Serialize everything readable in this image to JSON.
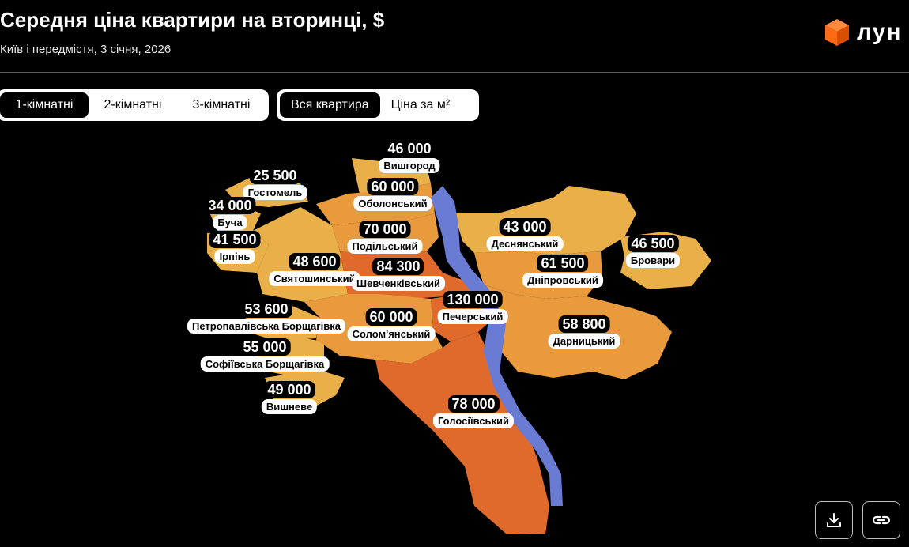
{
  "header": {
    "title": "Середня ціна квартири на вторинці, $",
    "subtitle": "Київ і передмістя, 3 січня, 2026"
  },
  "logo": {
    "text": "лун",
    "icon": "orange-cube-icon",
    "color": "#ff6a13"
  },
  "tabs_rooms": {
    "items": [
      {
        "label": "1-кімнатні",
        "active": true
      },
      {
        "label": "2-кімнатні",
        "active": false
      },
      {
        "label": "3-кімнатні",
        "active": false
      }
    ]
  },
  "tabs_metric": {
    "items": [
      {
        "label": "Вся квартира",
        "active": true
      },
      {
        "label": "Ціна за м²",
        "active": false
      }
    ]
  },
  "colors": {
    "river": "#6a7bd3",
    "shade_light": "#e9b04a",
    "shade_mid": "#e99a3c",
    "shade_dark": "#e06a2b"
  },
  "regions": [
    {
      "name": "Вишгород",
      "price": "46 000"
    },
    {
      "name": "Гостомель",
      "price": "25 500"
    },
    {
      "name": "Оболонський",
      "price": "60 000"
    },
    {
      "name": "Буча",
      "price": "34 000"
    },
    {
      "name": "Подільський",
      "price": "70 000"
    },
    {
      "name": "Ірпінь",
      "price": "41 500"
    },
    {
      "name": "Деснянський",
      "price": "43 000"
    },
    {
      "name": "Бровари",
      "price": "46 500"
    },
    {
      "name": "Святошинський",
      "price": "48 600"
    },
    {
      "name": "Шевченківський",
      "price": "84 300"
    },
    {
      "name": "Дніпровський",
      "price": "61 500"
    },
    {
      "name": "Печерський",
      "price": "130 000"
    },
    {
      "name": "Петропавлівська Борщагівка",
      "price": "53 600"
    },
    {
      "name": "Солом'янський",
      "price": "60 000"
    },
    {
      "name": "Дарницький",
      "price": "58 800"
    },
    {
      "name": "Софіївська Борщагівка",
      "price": "55 000"
    },
    {
      "name": "Вишневе",
      "price": "49 000"
    },
    {
      "name": "Голосіївський",
      "price": "78 000"
    }
  ],
  "actions": {
    "download_icon": "download-icon",
    "link_icon": "link-icon"
  }
}
